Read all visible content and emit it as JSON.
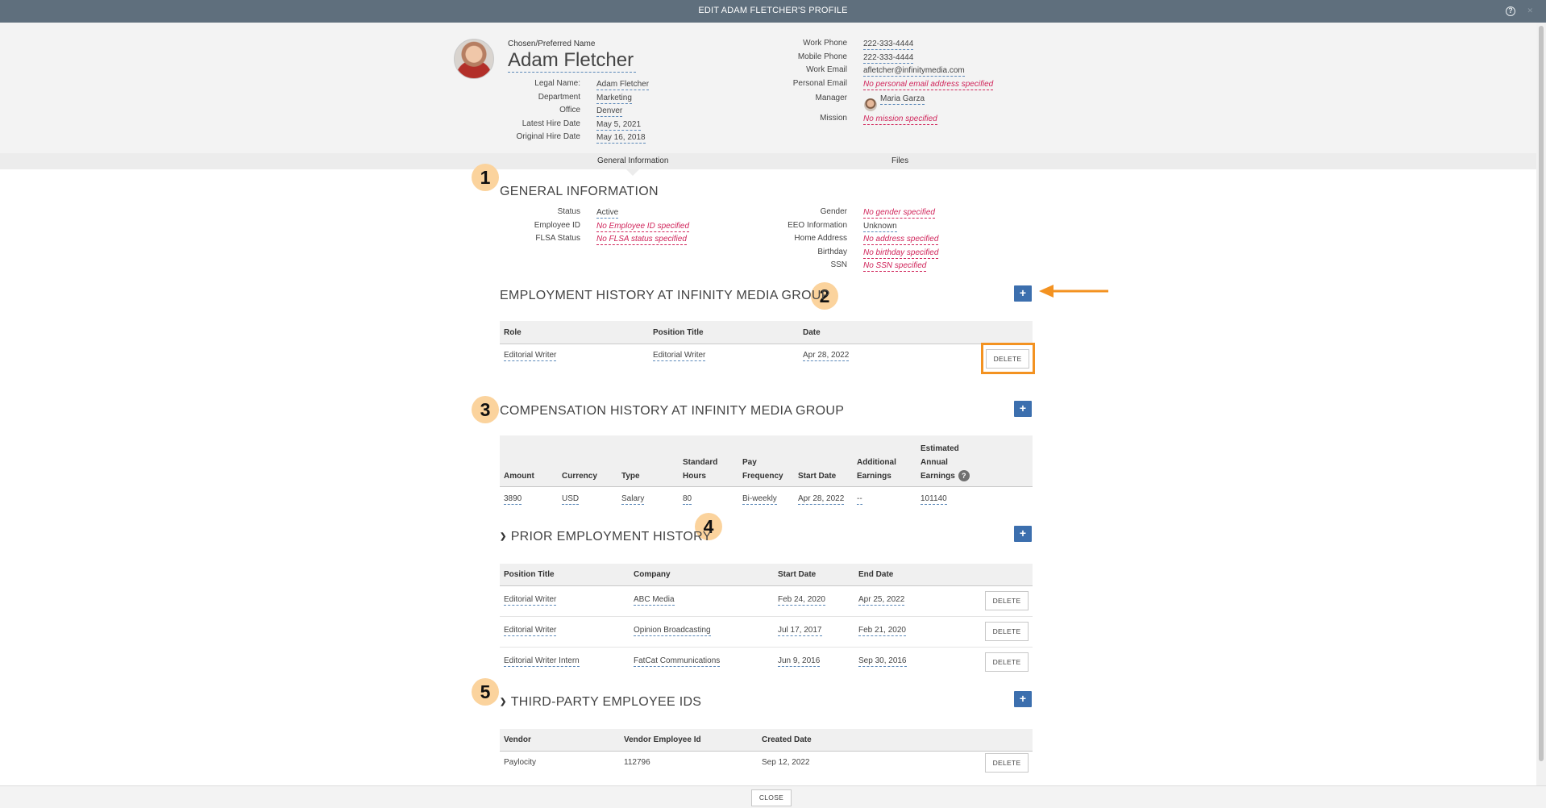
{
  "window": {
    "title": "EDIT ADAM FLETCHER'S PROFILE",
    "help_icon": "question-circle-icon"
  },
  "profile": {
    "chosen_name_label": "Chosen/Preferred Name",
    "chosen_name": "Adam Fletcher",
    "left_fields": [
      {
        "label": "Legal Name:",
        "value": "Adam Fletcher",
        "missing": false
      },
      {
        "label": "Department",
        "value": "Marketing",
        "missing": false
      },
      {
        "label": "Office",
        "value": "Denver",
        "missing": false
      },
      {
        "label": "Latest Hire Date",
        "value": "May 5, 2021",
        "missing": false
      },
      {
        "label": "Original Hire Date",
        "value": "May 16, 2018",
        "missing": false
      }
    ],
    "right_fields": [
      {
        "label": "Work Phone",
        "value": "222-333-4444",
        "missing": false
      },
      {
        "label": "Mobile Phone",
        "value": "222-333-4444",
        "missing": false
      },
      {
        "label": "Work Email",
        "value": "afletcher@infinitymedia.com",
        "missing": false
      },
      {
        "label": "Personal Email",
        "value": "No personal email address specified",
        "missing": true
      },
      {
        "label": "Manager",
        "value": "Maria Garza",
        "missing": false
      },
      {
        "label": "Mission",
        "value": "No mission specified",
        "missing": true
      }
    ]
  },
  "tabs": [
    {
      "label": "General Information",
      "active": true
    },
    {
      "label": "Files",
      "active": false
    }
  ],
  "general": {
    "title": "GENERAL INFORMATION",
    "left_fields": [
      {
        "label": "Status",
        "value": "Active",
        "missing": false
      },
      {
        "label": "Employee ID",
        "value": "No Employee ID specified",
        "missing": true
      },
      {
        "label": "FLSA Status",
        "value": "No FLSA status specified",
        "missing": true
      }
    ],
    "right_fields": [
      {
        "label": "Gender",
        "value": "No gender specified",
        "missing": true
      },
      {
        "label": "EEO Information",
        "value": "Unknown",
        "missing": false
      },
      {
        "label": "Home Address",
        "value": "No address specified",
        "missing": true
      },
      {
        "label": "Birthday",
        "value": "No birthday specified",
        "missing": true
      },
      {
        "label": "SSN",
        "value": "No SSN specified",
        "missing": true
      }
    ]
  },
  "employment": {
    "title": "EMPLOYMENT HISTORY AT INFINITY MEDIA GROUP",
    "headers": [
      "Role",
      "Position Title",
      "Date"
    ],
    "rows": [
      [
        "Editorial Writer",
        "Editorial Writer",
        "Apr 28, 2022"
      ]
    ],
    "delete_label": "DELETE",
    "add_label": "+"
  },
  "compensation": {
    "title": "COMPENSATION HISTORY AT INFINITY MEDIA GROUP",
    "headers": [
      "Amount",
      "Currency",
      "Type",
      "Standard|Hours",
      "Pay|Frequency",
      "Start Date",
      "Additional|Earnings",
      "Estimated|Annual|Earnings"
    ],
    "rows": [
      [
        "3890",
        "USD",
        "Salary",
        "80",
        "Bi-weekly",
        "Apr 28, 2022",
        "--",
        "101140"
      ]
    ],
    "add_label": "+",
    "help_label": "?"
  },
  "prior": {
    "title": "PRIOR EMPLOYMENT HISTORY",
    "headers": [
      "Position Title",
      "Company",
      "Start Date",
      "End Date"
    ],
    "rows": [
      [
        "Editorial Writer",
        "ABC Media",
        "Feb 24, 2020",
        "Apr 25, 2022"
      ],
      [
        "Editorial Writer",
        "Opinion Broadcasting",
        "Jul 17, 2017",
        "Feb 21, 2020"
      ],
      [
        "Editorial Writer Intern",
        "FatCat Communications",
        "Jun 9, 2016",
        "Sep 30, 2016"
      ]
    ],
    "delete_label": "DELETE",
    "add_label": "+"
  },
  "thirdparty": {
    "title": "THIRD-PARTY EMPLOYEE IDS",
    "headers": [
      "Vendor",
      "Vendor Employee Id",
      "Created Date"
    ],
    "rows": [
      [
        "Paylocity",
        "112796",
        "Sep 12, 2022"
      ]
    ],
    "delete_label": "DELETE",
    "add_label": "+"
  },
  "badges": [
    "1",
    "2",
    "3",
    "4",
    "5"
  ],
  "annotation": {
    "color": "#f39221",
    "badge_color": "#fbd39d"
  },
  "colors": {
    "titlebar": "#5f6f7d",
    "plus_button": "#3c6fae",
    "missing_text": "#d0245a",
    "link_underline": "#5b88b8"
  },
  "footer": {
    "close_label": "CLOSE"
  }
}
